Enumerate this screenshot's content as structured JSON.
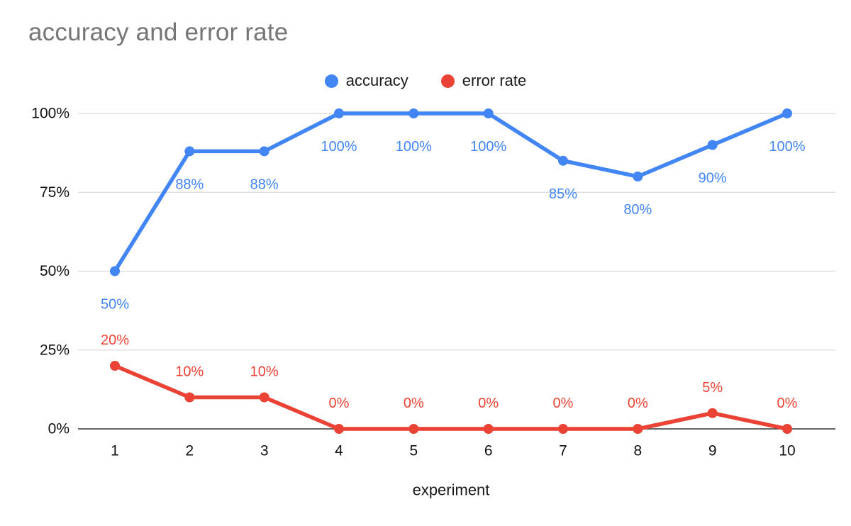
{
  "title": "accuracy and error rate",
  "legend": {
    "items": [
      {
        "label": "accuracy",
        "color": "#4285F4"
      },
      {
        "label": "error rate",
        "color": "#EA4335"
      }
    ]
  },
  "chart_data": {
    "type": "line",
    "title": "accuracy and error rate",
    "xlabel": "experiment",
    "ylabel": "",
    "x": [
      1,
      2,
      3,
      4,
      5,
      6,
      7,
      8,
      9,
      10
    ],
    "x_tick_labels": [
      "1",
      "2",
      "3",
      "4",
      "5",
      "6",
      "7",
      "8",
      "9",
      "10"
    ],
    "y_ticks": [
      0,
      25,
      50,
      75,
      100
    ],
    "y_tick_labels": [
      "0%",
      "25%",
      "50%",
      "75%",
      "100%"
    ],
    "ylim": [
      0,
      100
    ],
    "grid": true,
    "legend_position": "top",
    "series": [
      {
        "name": "accuracy",
        "color": "#4285F4",
        "values": [
          50,
          88,
          88,
          100,
          100,
          100,
          85,
          80,
          90,
          100
        ],
        "labels": [
          "50%",
          "88%",
          "88%",
          "100%",
          "100%",
          "100%",
          "85%",
          "80%",
          "90%",
          "100%"
        ],
        "label_placement": "below"
      },
      {
        "name": "error rate",
        "color": "#EA4335",
        "values": [
          20,
          10,
          10,
          0,
          0,
          0,
          0,
          0,
          5,
          0
        ],
        "labels": [
          "20%",
          "10%",
          "10%",
          "0%",
          "0%",
          "0%",
          "0%",
          "0%",
          "5%",
          "0%"
        ],
        "label_placement": "above"
      }
    ],
    "colors": {
      "title_text": "#757575",
      "axis_text": "#111111",
      "gridline": "#dadada",
      "zero_line": "#333333",
      "background": "#ffffff"
    }
  }
}
